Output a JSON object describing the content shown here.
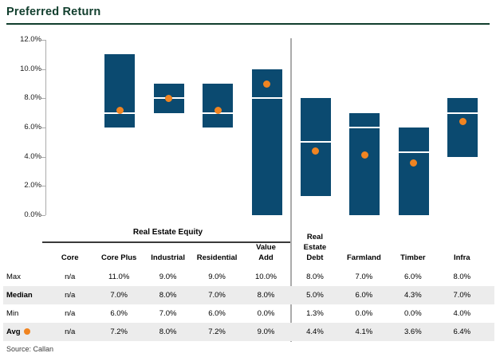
{
  "title": "Preferred Return",
  "source_note": "Source: Callan",
  "colors": {
    "title_green": "#113E2D",
    "bar_navy": "#0B4A70",
    "avg_orange": "#F08421",
    "row_shade": "#ECECEC",
    "axis_gray": "#ABABAB",
    "rule_dark": "#3A3A3A"
  },
  "chart_data": {
    "type": "floating-bar-range",
    "title": "Preferred Return",
    "ylim": [
      0,
      12
    ],
    "ytick_step": 2,
    "ytick_labels": [
      "0.0%",
      "2.0%",
      "4.0%",
      "6.0%",
      "8.0%",
      "10.0%",
      "12.0%"
    ],
    "grid": false,
    "categories": [
      "Core",
      "Core Plus",
      "Industrial",
      "Residential",
      "Value Add",
      "Real Estate Debt",
      "Farmland",
      "Timber",
      "Infra"
    ],
    "group_label": "Real Estate Equity",
    "group_column_range": [
      0,
      4
    ],
    "divider_after_index": 4,
    "series": [
      {
        "name": "Max",
        "values": [
          null,
          11.0,
          9.0,
          9.0,
          10.0,
          8.0,
          7.0,
          6.0,
          8.0
        ]
      },
      {
        "name": "Median",
        "values": [
          null,
          7.0,
          8.0,
          7.0,
          8.0,
          5.0,
          6.0,
          4.3,
          7.0
        ]
      },
      {
        "name": "Min",
        "values": [
          null,
          6.0,
          7.0,
          6.0,
          0.0,
          1.3,
          0.0,
          0.0,
          4.0
        ]
      },
      {
        "name": "Avg",
        "values": [
          null,
          7.2,
          8.0,
          7.2,
          9.0,
          4.4,
          4.1,
          3.6,
          6.4
        ]
      }
    ]
  },
  "table": {
    "column_headers": [
      "Core",
      "Core Plus",
      "Industrial",
      "Residential",
      "Value\nAdd",
      "Real\nEstate\nDebt",
      "Farmland",
      "Timber",
      "Infra"
    ],
    "rows": [
      {
        "label": "Max",
        "bold": false,
        "shaded": false,
        "has_dot": false,
        "values": [
          "n/a",
          "11.0%",
          "9.0%",
          "9.0%",
          "10.0%",
          "8.0%",
          "7.0%",
          "6.0%",
          "8.0%"
        ]
      },
      {
        "label": "Median",
        "bold": true,
        "shaded": true,
        "has_dot": false,
        "values": [
          "n/a",
          "7.0%",
          "8.0%",
          "7.0%",
          "8.0%",
          "5.0%",
          "6.0%",
          "4.3%",
          "7.0%"
        ]
      },
      {
        "label": "Min",
        "bold": false,
        "shaded": false,
        "has_dot": false,
        "values": [
          "n/a",
          "6.0%",
          "7.0%",
          "6.0%",
          "0.0%",
          "1.3%",
          "0.0%",
          "0.0%",
          "4.0%"
        ]
      },
      {
        "label": "Avg",
        "bold": true,
        "shaded": true,
        "has_dot": true,
        "values": [
          "n/a",
          "7.2%",
          "8.0%",
          "7.2%",
          "9.0%",
          "4.4%",
          "4.1%",
          "3.6%",
          "6.4%"
        ]
      }
    ]
  }
}
